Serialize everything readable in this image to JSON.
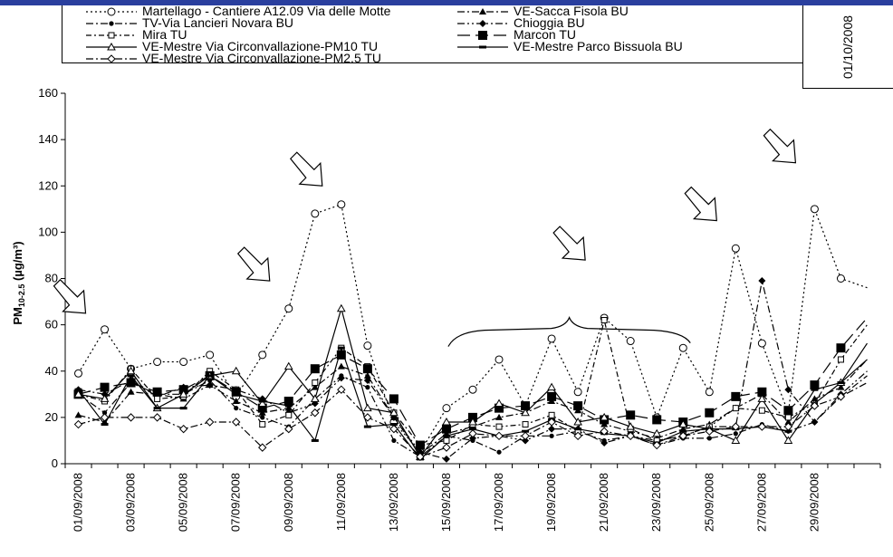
{
  "corner_date": "01/10/2008",
  "chart_data": {
    "type": "line",
    "title": "",
    "xlabel": "",
    "ylabel": "PM10-2.5 (µg/m³)",
    "ylim": [
      0,
      160
    ],
    "yticks": [
      0,
      20,
      40,
      60,
      80,
      100,
      120,
      140,
      160
    ],
    "x": [
      "01/09/2008",
      "02/09/2008",
      "03/09/2008",
      "04/09/2008",
      "05/09/2008",
      "06/09/2008",
      "07/09/2008",
      "08/09/2008",
      "09/09/2008",
      "10/09/2008",
      "11/09/2008",
      "12/09/2008",
      "13/09/2008",
      "14/09/2008",
      "15/09/2008",
      "16/09/2008",
      "17/09/2008",
      "18/09/2008",
      "19/09/2008",
      "20/09/2008",
      "21/09/2008",
      "22/09/2008",
      "23/09/2008",
      "24/09/2008",
      "25/09/2008",
      "26/09/2008",
      "27/09/2008",
      "28/09/2008",
      "29/09/2008",
      "30/09/2008",
      "01/10/2008"
    ],
    "xtick_labels": [
      "01/09/2008",
      "03/09/2008",
      "05/09/2008",
      "07/09/2008",
      "09/09/2008",
      "11/09/2008",
      "13/09/2008",
      "15/09/2008",
      "17/09/2008",
      "19/09/2008",
      "21/09/2008",
      "23/09/2008",
      "25/09/2008",
      "27/09/2008",
      "29/09/2008"
    ],
    "legend_position": "top",
    "series": [
      {
        "name": "Martellago - Cantiere A12.09 Via delle Motte",
        "dash": "2,3",
        "marker": "circle-open",
        "color": "#000000",
        "values": [
          39,
          58,
          41,
          44,
          44,
          47,
          29,
          47,
          67,
          108,
          112,
          51,
          18,
          5,
          24,
          32,
          45,
          25,
          54,
          31,
          63,
          53,
          20,
          50,
          31,
          93,
          52,
          22,
          110,
          80,
          76
        ]
      },
      {
        "name": "VE-Sacca Fisola BU",
        "dash": "8,3,2,3",
        "marker": "triangle-filled",
        "color": "#000000",
        "values": [
          21,
          18,
          31,
          30,
          28,
          34,
          27,
          22,
          24,
          33,
          42,
          38,
          20,
          4,
          13,
          16,
          20,
          22,
          27,
          23,
          17,
          14,
          11,
          15,
          17,
          24,
          30,
          18,
          28,
          33,
          45
        ]
      },
      {
        "name": "TV-Via Lancieri Novara BU",
        "dash": "8,3,2,3",
        "marker": "circle-filled-small",
        "color": "#000000",
        "values": [
          30,
          22,
          35,
          30,
          30,
          36,
          24,
          20,
          16,
          28,
          38,
          33,
          10,
          3,
          12,
          10,
          5,
          12,
          12,
          14,
          10,
          12,
          8,
          11,
          11,
          13,
          17,
          14,
          18,
          29,
          38
        ]
      },
      {
        "name": "Chioggia BU",
        "dash": "8,3,2,3,2,3",
        "marker": "diamond-filled",
        "color": "#000000",
        "values": [
          32,
          30,
          36,
          29,
          33,
          34,
          32,
          28,
          22,
          26,
          37,
          36,
          20,
          5,
          2,
          11,
          12,
          10,
          15,
          15,
          9,
          12,
          10,
          12,
          16,
          16,
          79,
          32,
          18,
          30,
          40
        ]
      },
      {
        "name": "Mira TU",
        "dash": "6,3,2,3",
        "marker": "square-open",
        "color": "#000000",
        "values": [
          30,
          27,
          41,
          28,
          29,
          40,
          32,
          17,
          21,
          35,
          50,
          42,
          22,
          8,
          10,
          17,
          16,
          17,
          21,
          14,
          62,
          15,
          10,
          12,
          16,
          24,
          23,
          20,
          26,
          45,
          60
        ]
      },
      {
        "name": "Marcon TU",
        "dash": "14,6",
        "marker": "square-filled",
        "color": "#000000",
        "values": [
          30,
          33,
          35,
          31,
          32,
          38,
          31,
          24,
          27,
          41,
          47,
          41,
          28,
          8,
          15,
          20,
          24,
          25,
          29,
          25,
          19,
          21,
          19,
          18,
          22,
          29,
          31,
          23,
          34,
          50,
          63
        ]
      },
      {
        "name": "VE-Mestre Via Circonvallazione-PM10 TU",
        "dash": "",
        "marker": "triangle-open",
        "color": "#000000",
        "values": [
          30,
          28,
          40,
          24,
          30,
          38,
          40,
          26,
          42,
          28,
          67,
          24,
          22,
          3,
          18,
          18,
          26,
          22,
          33,
          18,
          20,
          16,
          13,
          17,
          15,
          10,
          28,
          10,
          26,
          35,
          45
        ]
      },
      {
        "name": "VE-Mestre Parco Bissuola BU",
        "dash": "",
        "marker": "dash",
        "color": "#000000",
        "values": [
          32,
          17,
          38,
          24,
          24,
          38,
          30,
          27,
          25,
          10,
          50,
          16,
          17,
          2,
          12,
          15,
          12,
          14,
          19,
          15,
          13,
          12,
          9,
          14,
          15,
          15,
          16,
          14,
          32,
          35,
          52
        ]
      },
      {
        "name": "VE-Mestre Via Circonvallazione-PM2.5 TU",
        "dash": "8,3,2,3",
        "marker": "diamond-open",
        "color": "#000000",
        "values": [
          17,
          20,
          20,
          20,
          15,
          18,
          18,
          7,
          15,
          22,
          32,
          20,
          15,
          3,
          7,
          13,
          12,
          12,
          18,
          12,
          14,
          12,
          8,
          12,
          14,
          16,
          16,
          16,
          25,
          29,
          35
        ]
      }
    ],
    "annotations": [
      {
        "type": "arrow",
        "x": "01/09/2008",
        "y": 65
      },
      {
        "type": "arrow",
        "x": "08/09/2008",
        "y": 79
      },
      {
        "type": "arrow",
        "x": "10/09/2008",
        "y": 120
      },
      {
        "type": "arrow",
        "x": "20/09/2008",
        "y": 88
      },
      {
        "type": "arrow",
        "x": "25/09/2008",
        "y": 105
      },
      {
        "type": "arrow",
        "x": "28/09/2008",
        "y": 130
      },
      {
        "type": "brace",
        "x_from": "15/09/2008",
        "x_to": "24/09/2008",
        "y": 60
      }
    ]
  }
}
